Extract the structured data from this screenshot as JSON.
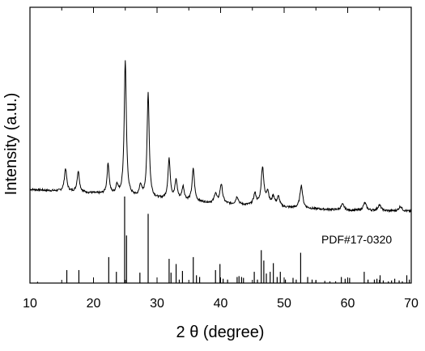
{
  "chart_data": {
    "type": "line",
    "xlabel": "2 θ (degree)",
    "ylabel": "Intensity (a.u.)",
    "xlim": [
      10,
      70
    ],
    "xticks": [
      "10",
      "20",
      "30",
      "40",
      "50",
      "60",
      "70"
    ],
    "y_ticks_shown": false,
    "grid": false,
    "legend": "none",
    "annotation": "PDF#17-0320",
    "series": [
      {
        "kind": "measured-pattern",
        "baseline": [
          [
            10,
            16
          ],
          [
            20,
            14
          ],
          [
            30,
            11
          ],
          [
            40,
            8.5
          ],
          [
            50,
            6.5
          ],
          [
            60,
            5
          ],
          [
            70,
            4.5
          ]
        ],
        "peaks": [
          {
            "x": 15.6,
            "h": 12,
            "w": 0.22
          },
          {
            "x": 17.6,
            "h": 11,
            "w": 0.22
          },
          {
            "x": 22.3,
            "h": 16,
            "w": 0.2
          },
          {
            "x": 23.7,
            "h": 5,
            "w": 0.2
          },
          {
            "x": 25.0,
            "h": 71,
            "w": 0.2
          },
          {
            "x": 27.4,
            "h": 6,
            "w": 0.2
          },
          {
            "x": 28.6,
            "h": 55,
            "w": 0.2
          },
          {
            "x": 31.9,
            "h": 21,
            "w": 0.22
          },
          {
            "x": 33.0,
            "h": 10,
            "w": 0.22
          },
          {
            "x": 34.1,
            "h": 7,
            "w": 0.22
          },
          {
            "x": 35.7,
            "h": 17,
            "w": 0.22
          },
          {
            "x": 39.2,
            "h": 5,
            "w": 0.22
          },
          {
            "x": 40.1,
            "h": 10,
            "w": 0.25
          },
          {
            "x": 42.6,
            "h": 4,
            "w": 0.25
          },
          {
            "x": 45.4,
            "h": 6,
            "w": 0.25
          },
          {
            "x": 46.6,
            "h": 20,
            "w": 0.25
          },
          {
            "x": 47.4,
            "h": 7,
            "w": 0.25
          },
          {
            "x": 48.3,
            "h": 5,
            "w": 0.25
          },
          {
            "x": 49.1,
            "h": 5,
            "w": 0.25
          },
          {
            "x": 52.7,
            "h": 12,
            "w": 0.25
          },
          {
            "x": 59.2,
            "h": 3,
            "w": 0.3
          },
          {
            "x": 62.7,
            "h": 4,
            "w": 0.3
          },
          {
            "x": 65.0,
            "h": 3,
            "w": 0.3
          },
          {
            "x": 68.3,
            "h": 2.5,
            "w": 0.3
          }
        ]
      },
      {
        "kind": "reference-sticks",
        "sticks": [
          [
            11.2,
            1.5
          ],
          [
            15.8,
            15
          ],
          [
            17.7,
            15
          ],
          [
            22.4,
            30
          ],
          [
            23.6,
            13
          ],
          [
            24.9,
            100
          ],
          [
            25.2,
            55
          ],
          [
            27.3,
            12
          ],
          [
            28.6,
            80
          ],
          [
            31.9,
            28
          ],
          [
            32.2,
            12
          ],
          [
            33.0,
            22
          ],
          [
            33.5,
            4
          ],
          [
            34.0,
            14
          ],
          [
            35.7,
            30
          ],
          [
            36.2,
            9
          ],
          [
            36.7,
            7
          ],
          [
            39.2,
            15
          ],
          [
            39.9,
            22
          ],
          [
            40.4,
            5
          ],
          [
            41.1,
            4
          ],
          [
            42.6,
            7
          ],
          [
            42.9,
            8
          ],
          [
            43.3,
            7
          ],
          [
            43.6,
            6
          ],
          [
            45.3,
            13
          ],
          [
            45.8,
            4
          ],
          [
            46.4,
            38
          ],
          [
            46.8,
            26
          ],
          [
            47.2,
            11
          ],
          [
            47.8,
            13
          ],
          [
            48.3,
            23
          ],
          [
            48.9,
            7
          ],
          [
            49.4,
            13
          ],
          [
            50.2,
            4
          ],
          [
            51.4,
            6
          ],
          [
            51.9,
            4
          ],
          [
            52.6,
            35
          ],
          [
            53.7,
            7
          ],
          [
            54.4,
            4
          ],
          [
            55.0,
            3
          ],
          [
            56.4,
            2.5
          ],
          [
            57.2,
            2
          ],
          [
            58.1,
            2
          ],
          [
            59.0,
            7
          ],
          [
            59.6,
            5
          ],
          [
            60.3,
            6
          ],
          [
            62.6,
            13
          ],
          [
            63.2,
            4
          ],
          [
            64.2,
            4
          ],
          [
            64.6,
            5
          ],
          [
            65.1,
            9
          ],
          [
            65.6,
            3
          ],
          [
            66.4,
            2
          ],
          [
            66.9,
            3
          ],
          [
            67.4,
            5
          ],
          [
            68.1,
            3
          ],
          [
            68.6,
            2
          ],
          [
            69.3,
            9
          ],
          [
            69.7,
            4
          ]
        ]
      }
    ]
  }
}
